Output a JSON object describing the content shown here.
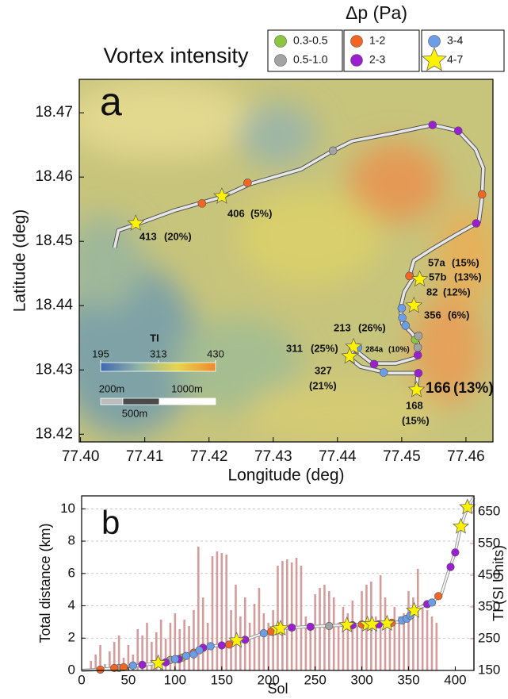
{
  "chart_data": [
    {
      "type": "scatter",
      "panel_label": "a",
      "title": "Vortex intensity",
      "legend_title": "Δp (Pa)",
      "legend": "top",
      "xlabel": "Longitude (deg)",
      "ylabel": "Latitude (deg)",
      "xlim": [
        77.3998,
        77.4642
      ],
      "xticks": [
        {
          "value": 77.4,
          "label": "77.40"
        },
        77.41,
        77.42,
        77.43,
        77.44,
        77.45,
        77.46
      ],
      "ylim": [
        18.4188,
        18.4752
      ],
      "yticks": [
        18.47,
        18.46,
        18.45,
        18.44,
        18.43,
        18.42
      ],
      "track": {
        "color": "#e6e6e6",
        "x": [
          77.4053,
          77.4059,
          77.4086,
          77.4146,
          77.422,
          77.4263,
          77.4343,
          77.4393,
          77.4423,
          77.4491,
          77.4548,
          77.4588,
          77.4615,
          77.4627,
          77.4625,
          77.462,
          77.4584,
          77.4547,
          77.4519,
          77.4514,
          77.4516,
          77.4504,
          77.4498,
          77.4501,
          77.4516,
          77.4525,
          77.4526,
          77.4491,
          77.4454,
          77.4426,
          77.4417,
          77.4436,
          77.4479,
          77.4525,
          77.4523
        ],
        "values": [
          18.449,
          18.4517,
          18.4526,
          18.4548,
          18.4569,
          18.4589,
          18.4612,
          18.4641,
          18.4656,
          18.4669,
          18.4681,
          18.4672,
          18.4643,
          18.4614,
          18.4567,
          18.453,
          18.451,
          18.4488,
          18.447,
          18.4453,
          18.4441,
          18.4421,
          18.4396,
          18.4372,
          18.4357,
          18.4342,
          18.432,
          18.431,
          18.431,
          18.4332,
          18.432,
          18.4305,
          18.4295,
          18.4295,
          18.427
        ]
      },
      "series": [
        {
          "name": "0.3-0.5",
          "color": "#8cc63f",
          "marker": "circle",
          "x": [
            77.4521
          ],
          "values": [
            18.4347
          ]
        },
        {
          "name": "0.5-1.0",
          "color": "#a3a3a3",
          "marker": "circle",
          "x": [
            77.4393,
            77.4526,
            77.4525
          ],
          "values": [
            18.4641,
            18.4353,
            18.4335
          ]
        },
        {
          "name": "1-2",
          "color": "#f26522",
          "marker": "circle",
          "x": [
            77.426,
            77.4189,
            77.4625,
            77.4512
          ],
          "values": [
            18.4591,
            18.4559,
            18.4573,
            18.4446
          ]
        },
        {
          "name": "2-3",
          "color": "#9b1fd0",
          "marker": "circle",
          "x": [
            77.4548,
            77.4588,
            77.4616,
            77.4525,
            77.4526,
            77.4457
          ],
          "values": [
            18.4681,
            18.4672,
            18.4528,
            18.4323,
            18.4295,
            18.4309
          ]
        },
        {
          "name": "3-4",
          "color": "#6b9de8",
          "marker": "circle",
          "x": [
            77.45,
            77.4501,
            77.4506,
            77.4472,
            77.4432
          ],
          "values": [
            18.4396,
            18.4381,
            18.4369,
            18.4296,
            18.4335
          ]
        },
        {
          "name": "4-7",
          "color": "#fff200",
          "marker": "star",
          "x": [
            77.4086,
            77.422,
            77.4528,
            77.4519,
            77.4425,
            77.4419,
            77.4523
          ],
          "values": [
            18.4528,
            18.457,
            18.4441,
            18.44,
            18.4336,
            18.4321,
            18.4269
          ]
        }
      ],
      "annotations": [
        {
          "label": "413",
          "pct": "(20%)",
          "pct_color": "#ffe600"
        },
        {
          "label": "406",
          "pct": "(5%)",
          "pct_color": "#ffe600"
        },
        {
          "label": "57a",
          "pct": "(15%)",
          "pct_color": "#6b9de8"
        },
        {
          "label": "57b",
          "pct": "(13%)",
          "pct_color": "#9b1fd0"
        },
        {
          "label": "82",
          "pct": "(12%)",
          "pct_color": "#ffe600"
        },
        {
          "label": "356",
          "pct": "(6%)",
          "pct_color": "#ffe600"
        },
        {
          "label": "213",
          "pct": "(26%)",
          "pct_color": "#ffe600"
        },
        {
          "label": "284a",
          "pct": "(10%)",
          "pct_color": "#ffe600"
        },
        {
          "label": "311",
          "pct": "(25%)",
          "pct_color": "#ffe600"
        },
        {
          "label": "327",
          "pct": "(21%)",
          "pct_color": "#ffe600"
        },
        {
          "label": "166",
          "pct": "(13%)",
          "pct_color": "#ffe600"
        },
        {
          "label": "168",
          "pct": "(15%)",
          "pct_color": "#ffe600"
        }
      ],
      "colorbar": {
        "label": "TI",
        "lim": [
          195,
          430
        ],
        "ticks": [
          195,
          313,
          430
        ],
        "colormap": [
          "#3f68b2",
          "#8fb5a8",
          "#e6d64c",
          "#f0892e"
        ]
      },
      "scalebar": {
        "labels": [
          "200m",
          "500m",
          "1000m"
        ]
      }
    },
    {
      "type": "line",
      "panel_label": "b",
      "xlabel": "Sol",
      "ylabel": "Total distance (km)",
      "y2label": "TI (SI Units)",
      "grid": true,
      "xlim": [
        0,
        420
      ],
      "xticks": [
        0,
        50,
        100,
        150,
        200,
        250,
        300,
        350,
        400
      ],
      "ylim": [
        0,
        10.8
      ],
      "yticks": [
        0,
        2,
        4,
        6,
        8,
        10
      ],
      "y2lim": [
        150,
        700
      ],
      "y2ticks": [
        150,
        250,
        350,
        450,
        550,
        650
      ],
      "ti": {
        "axis": "y2",
        "color": "#cf8b8b",
        "x": [
          10,
          15,
          20,
          25,
          30,
          35,
          40,
          45,
          50,
          55,
          60,
          65,
          70,
          75,
          80,
          85,
          90,
          95,
          100,
          105,
          110,
          115,
          120,
          125,
          130,
          135,
          140,
          145,
          150,
          155,
          160,
          165,
          170,
          175,
          180,
          185,
          190,
          195,
          200,
          205,
          210,
          215,
          220,
          225,
          230,
          235,
          240,
          245,
          250,
          255,
          260,
          265,
          270,
          275,
          280,
          285,
          290,
          295,
          300,
          305,
          310,
          315,
          320,
          325,
          330,
          335,
          340,
          345,
          350,
          355,
          360,
          365,
          370,
          375,
          380
        ],
        "values": [
          180,
          200,
          230,
          170,
          210,
          240,
          260,
          190,
          230,
          200,
          280,
          260,
          300,
          240,
          270,
          310,
          250,
          300,
          330,
          280,
          310,
          290,
          340,
          540,
          380,
          300,
          510,
          525,
          520,
          515,
          340,
          420,
          320,
          380,
          300,
          360,
          410,
          330,
          300,
          340,
          480,
          495,
          500,
          490,
          505,
          480,
          320,
          300,
          390,
          410,
          420,
          400,
          380,
          300,
          350,
          330,
          370,
          300,
          400,
          420,
          430,
          320,
          450,
          380,
          300,
          350,
          320,
          330,
          400,
          380,
          470,
          360,
          340,
          320,
          300
        ]
      },
      "distance": {
        "color": "#9a9a9a",
        "x": [
          0,
          15,
          40,
          60,
          82,
          100,
          120,
          140,
          160,
          175,
          195,
          213,
          240,
          280,
          320,
          340,
          350,
          360,
          375,
          385,
          392,
          400,
          406,
          413,
          420
        ],
        "values": [
          0,
          0.05,
          0.15,
          0.3,
          0.45,
          0.7,
          1.1,
          1.5,
          1.65,
          1.9,
          2.3,
          2.6,
          2.7,
          2.8,
          2.88,
          3.0,
          3.3,
          3.85,
          4.2,
          4.7,
          6.0,
          7.3,
          8.9,
          10.1,
          10.7
        ]
      },
      "markers": [
        {
          "color": "#8cc63f",
          "marker": "circle",
          "x": [
            108
          ],
          "values": [
            0.8
          ]
        },
        {
          "color": "#a3a3a3",
          "marker": "circle",
          "x": [
            40,
            95,
            265
          ],
          "values": [
            0.15,
            0.65,
            2.75
          ]
        },
        {
          "color": "#f26522",
          "marker": "circle",
          "x": [
            20,
            35,
            45,
            120,
            158,
            203,
            300,
            332,
            382
          ],
          "values": [
            0.05,
            0.15,
            0.2,
            1.1,
            1.6,
            2.4,
            2.85,
            2.95,
            4.6
          ]
        },
        {
          "color": "#9b1fd0",
          "marker": "circle",
          "x": [
            65,
            90,
            104,
            130,
            150,
            175,
            225,
            245,
            290,
            318,
            370,
            395,
            400
          ],
          "values": [
            0.35,
            0.5,
            0.7,
            1.4,
            1.55,
            1.9,
            2.65,
            2.7,
            2.8,
            2.85,
            4.1,
            6.4,
            7.3
          ]
        },
        {
          "color": "#6b9de8",
          "marker": "circle",
          "x": [
            55,
            100,
            112,
            120,
            126,
            138,
            195,
            343,
            348,
            352,
            375
          ],
          "values": [
            0.3,
            0.7,
            0.9,
            1.0,
            1.25,
            1.5,
            2.3,
            3.1,
            3.2,
            3.4,
            4.2
          ]
        },
        {
          "color": "#fff200",
          "marker": "star",
          "x": [
            82,
            166,
            210,
            213,
            284,
            306,
            311,
            327,
            356,
            406,
            413
          ],
          "values": [
            0.45,
            1.85,
            2.55,
            2.6,
            2.8,
            2.85,
            2.85,
            2.9,
            3.7,
            8.9,
            10.1
          ]
        }
      ]
    }
  ]
}
